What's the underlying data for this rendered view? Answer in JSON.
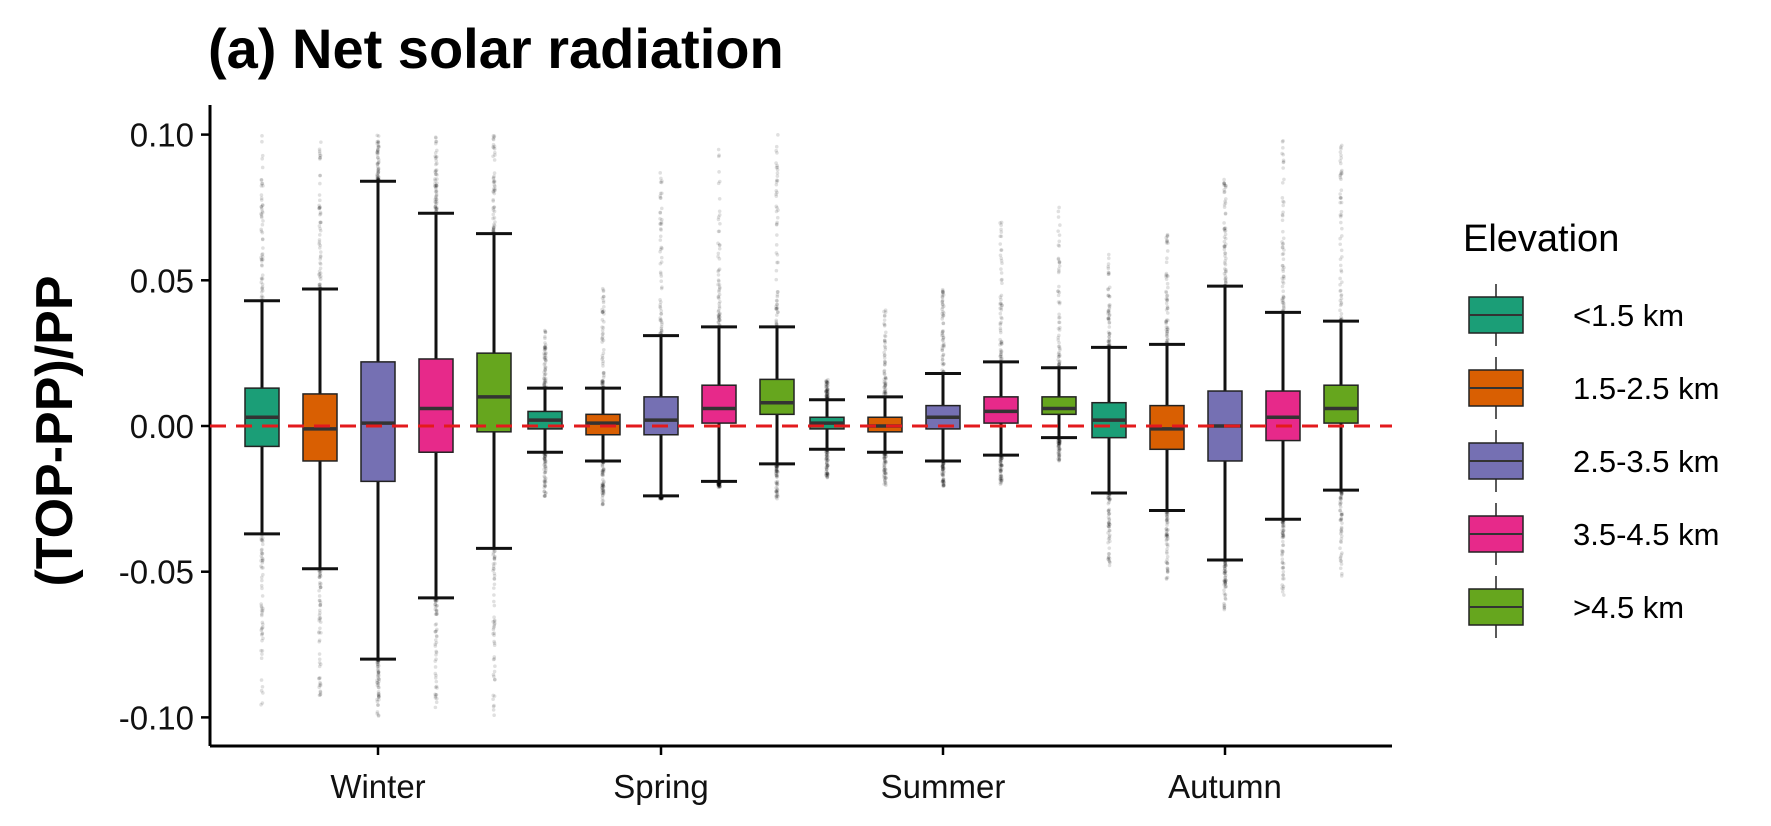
{
  "chart_data": {
    "type": "boxplot",
    "title": "(a) Net solar radiation",
    "xlabel": "",
    "ylabel": "(TOP-PP)/PP",
    "ylim": [
      -0.11,
      0.11
    ],
    "yticks": [
      -0.1,
      -0.05,
      0.0,
      0.05,
      0.1
    ],
    "ytick_labels": [
      "-0.10",
      "-0.05",
      "0.00",
      "0.05",
      "0.10"
    ],
    "categories": [
      "Winter",
      "Spring",
      "Summer",
      "Autumn"
    ],
    "reference_line": {
      "y": 0,
      "style": "dashed",
      "color": "#e31a1c"
    },
    "legend": {
      "title": "Elevation",
      "placement": "right"
    },
    "series": [
      {
        "name": "<1.5 km",
        "color": "#1b9e77",
        "boxes": [
          {
            "whisker_low": -0.037,
            "q1": -0.007,
            "median": 0.003,
            "q3": 0.013,
            "whisker_high": 0.043,
            "outlier_min": -0.098,
            "outlier_max": 0.1
          },
          {
            "whisker_low": -0.009,
            "q1": -0.001,
            "median": 0.002,
            "q3": 0.005,
            "whisker_high": 0.013,
            "outlier_min": -0.025,
            "outlier_max": 0.033
          },
          {
            "whisker_low": -0.008,
            "q1": -0.001,
            "median": 0.001,
            "q3": 0.003,
            "whisker_high": 0.009,
            "outlier_min": -0.018,
            "outlier_max": 0.016
          },
          {
            "whisker_low": -0.023,
            "q1": -0.004,
            "median": 0.002,
            "q3": 0.008,
            "whisker_high": 0.027,
            "outlier_min": -0.048,
            "outlier_max": 0.06
          }
        ]
      },
      {
        "name": "1.5-2.5 km",
        "color": "#d95f02",
        "boxes": [
          {
            "whisker_low": -0.049,
            "q1": -0.012,
            "median": -0.001,
            "q3": 0.011,
            "whisker_high": 0.047,
            "outlier_min": -0.095,
            "outlier_max": 0.1
          },
          {
            "whisker_low": -0.012,
            "q1": -0.003,
            "median": 0.001,
            "q3": 0.004,
            "whisker_high": 0.013,
            "outlier_min": -0.027,
            "outlier_max": 0.048
          },
          {
            "whisker_low": -0.009,
            "q1": -0.002,
            "median": 0.0,
            "q3": 0.003,
            "whisker_high": 0.01,
            "outlier_min": -0.021,
            "outlier_max": 0.04
          },
          {
            "whisker_low": -0.029,
            "q1": -0.008,
            "median": -0.001,
            "q3": 0.007,
            "whisker_high": 0.028,
            "outlier_min": -0.053,
            "outlier_max": 0.067
          }
        ]
      },
      {
        "name": "2.5-3.5 km",
        "color": "#7570b3",
        "boxes": [
          {
            "whisker_low": -0.08,
            "q1": -0.019,
            "median": 0.001,
            "q3": 0.022,
            "whisker_high": 0.084,
            "outlier_min": -0.1,
            "outlier_max": 0.1
          },
          {
            "whisker_low": -0.024,
            "q1": -0.003,
            "median": 0.002,
            "q3": 0.01,
            "whisker_high": 0.031,
            "outlier_min": -0.025,
            "outlier_max": 0.088
          },
          {
            "whisker_low": -0.012,
            "q1": -0.001,
            "median": 0.003,
            "q3": 0.007,
            "whisker_high": 0.018,
            "outlier_min": -0.021,
            "outlier_max": 0.047
          },
          {
            "whisker_low": -0.046,
            "q1": -0.012,
            "median": -0.0,
            "q3": 0.012,
            "whisker_high": 0.048,
            "outlier_min": -0.063,
            "outlier_max": 0.085
          }
        ]
      },
      {
        "name": "3.5-4.5 km",
        "color": "#e7298a",
        "boxes": [
          {
            "whisker_low": -0.059,
            "q1": -0.009,
            "median": 0.006,
            "q3": 0.023,
            "whisker_high": 0.073,
            "outlier_min": -0.098,
            "outlier_max": 0.1
          },
          {
            "whisker_low": -0.019,
            "q1": 0.001,
            "median": 0.006,
            "q3": 0.014,
            "whisker_high": 0.034,
            "outlier_min": -0.021,
            "outlier_max": 0.098
          },
          {
            "whisker_low": -0.01,
            "q1": 0.001,
            "median": 0.005,
            "q3": 0.01,
            "whisker_high": 0.022,
            "outlier_min": -0.02,
            "outlier_max": 0.07
          },
          {
            "whisker_low": -0.032,
            "q1": -0.005,
            "median": 0.003,
            "q3": 0.012,
            "whisker_high": 0.039,
            "outlier_min": -0.059,
            "outlier_max": 0.1
          }
        ]
      },
      {
        "name": ">4.5 km",
        "color": "#66a61e",
        "boxes": [
          {
            "whisker_low": -0.042,
            "q1": -0.002,
            "median": 0.01,
            "q3": 0.025,
            "whisker_high": 0.066,
            "outlier_min": -0.1,
            "outlier_max": 0.1
          },
          {
            "whisker_low": -0.013,
            "q1": 0.004,
            "median": 0.008,
            "q3": 0.016,
            "whisker_high": 0.034,
            "outlier_min": -0.025,
            "outlier_max": 0.1
          },
          {
            "whisker_low": -0.004,
            "q1": 0.004,
            "median": 0.006,
            "q3": 0.01,
            "whisker_high": 0.02,
            "outlier_min": -0.012,
            "outlier_max": 0.078
          },
          {
            "whisker_low": -0.022,
            "q1": 0.001,
            "median": 0.006,
            "q3": 0.014,
            "whisker_high": 0.036,
            "outlier_min": -0.052,
            "outlier_max": 0.1
          }
        ]
      }
    ]
  }
}
